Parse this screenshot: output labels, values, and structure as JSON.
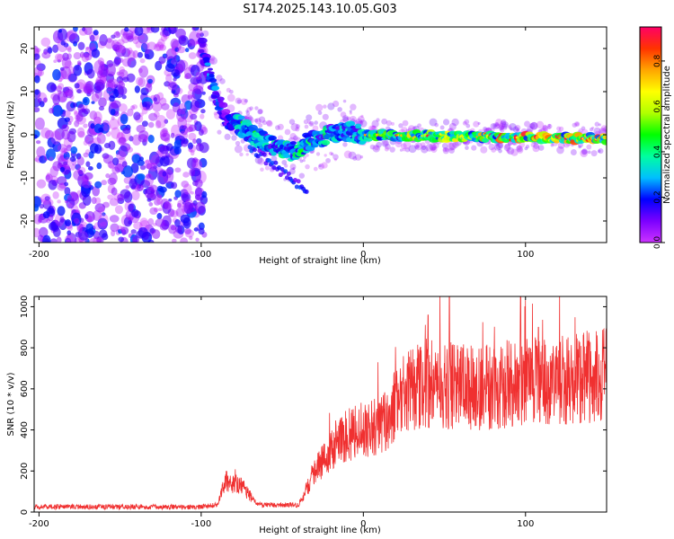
{
  "title": "S174.2025.143.10.05.G03",
  "chart_data": [
    {
      "type": "heatmap",
      "title": "",
      "xlabel": "Height of straight line (km)",
      "ylabel": "Frequency (Hz)",
      "xlim": [
        -203,
        150
      ],
      "ylim": [
        -25,
        25
      ],
      "xticks": [
        -200,
        -100,
        0,
        100
      ],
      "yticks": [
        -20,
        -10,
        0,
        10,
        20
      ],
      "colorbar": {
        "label": "Normalized spectral amplitude",
        "range": [
          0,
          0.95
        ],
        "ticks": [
          0.0,
          0.2,
          0.4,
          0.6,
          0.8
        ],
        "colormap": [
          "#cc33ff",
          "#7b00ff",
          "#0000ff",
          "#00bfff",
          "#00ffa0",
          "#00ff00",
          "#b0ff00",
          "#ffff00",
          "#ffa500",
          "#ff3300",
          "#ff0066"
        ]
      },
      "ridge": {
        "description_points": [
          {
            "x": -100,
            "y": 21
          },
          {
            "x": -95,
            "y": 14
          },
          {
            "x": -90,
            "y": 8
          },
          {
            "x": -85,
            "y": 4
          },
          {
            "x": -75,
            "y": 2
          },
          {
            "x": -60,
            "y": -2
          },
          {
            "x": -45,
            "y": -4
          },
          {
            "x": -30,
            "y": -1
          },
          {
            "x": -10,
            "y": 1
          },
          {
            "x": 0,
            "y": 0
          },
          {
            "x": 150,
            "y": -1
          }
        ]
      }
    },
    {
      "type": "line",
      "title": "",
      "xlabel": "Height of straight line (km)",
      "ylabel": "SNR (10 * v/v)",
      "xlim": [
        -203,
        150
      ],
      "ylim": [
        0,
        1050
      ],
      "xticks": [
        -200,
        -100,
        0,
        100
      ],
      "yticks": [
        0,
        200,
        400,
        600,
        800,
        1000
      ],
      "series": [
        {
          "name": "SNR",
          "color": "#f03030",
          "trend": [
            {
              "x": -203,
              "y": 20
            },
            {
              "x": -100,
              "y": 20
            },
            {
              "x": -90,
              "y": 30
            },
            {
              "x": -85,
              "y": 150
            },
            {
              "x": -75,
              "y": 130
            },
            {
              "x": -65,
              "y": 30
            },
            {
              "x": -40,
              "y": 30
            },
            {
              "x": -30,
              "y": 200
            },
            {
              "x": -20,
              "y": 300
            },
            {
              "x": -10,
              "y": 380
            },
            {
              "x": 0,
              "y": 400
            },
            {
              "x": 10,
              "y": 420
            },
            {
              "x": 20,
              "y": 520
            },
            {
              "x": 30,
              "y": 600
            },
            {
              "x": 50,
              "y": 620
            },
            {
              "x": 70,
              "y": 600
            },
            {
              "x": 100,
              "y": 630
            },
            {
              "x": 130,
              "y": 640
            },
            {
              "x": 150,
              "y": 680
            }
          ],
          "peaks": [
            {
              "x": 53,
              "y": 1050
            },
            {
              "x": 97,
              "y": 1050
            },
            {
              "x": 40,
              "y": 960
            },
            {
              "x": 108,
              "y": 900
            }
          ]
        }
      ]
    }
  ]
}
